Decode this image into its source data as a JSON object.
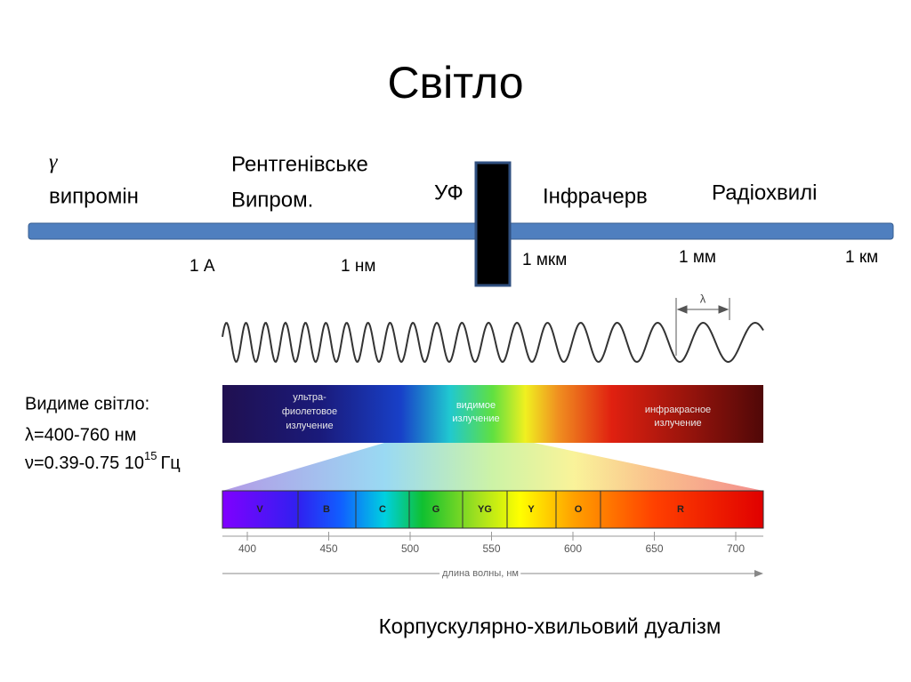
{
  "title": "Світло",
  "scale": {
    "regions": [
      {
        "lines": [
          "γ",
          "випромін"
        ]
      },
      {
        "lines": [
          "Рентгенівське",
          "Випром."
        ]
      },
      {
        "lines": [
          "УФ"
        ]
      },
      {
        "lines": [
          "Інфрачерв"
        ]
      },
      {
        "lines": [
          "Радіохвилі"
        ]
      }
    ],
    "marks": [
      "1 А",
      "1 нм",
      "1 мкм",
      "1 мм",
      "1 км"
    ]
  },
  "figure": {
    "lambda": "λ",
    "bands": [
      [
        "ультра-",
        "фиолетовое",
        "излучение"
      ],
      [
        "видимое",
        "излучение"
      ],
      [
        "инфракрасное",
        "излучение"
      ]
    ],
    "colors": [
      "V",
      "B",
      "C",
      "G",
      "YG",
      "Y",
      "O",
      "R"
    ],
    "ticks": [
      400,
      450,
      500,
      550,
      600,
      650,
      700
    ],
    "axis_label": "длина волны, нм"
  },
  "visible_light": {
    "heading": "Видиме світло:",
    "wavelength": "λ=400-760 нм",
    "frequency": {
      "text": "ν=0.39-0.75 10",
      "exponent": "15",
      "unit": "Гц"
    }
  },
  "caption": "Корпускулярно-хвильовий дуалізм"
}
